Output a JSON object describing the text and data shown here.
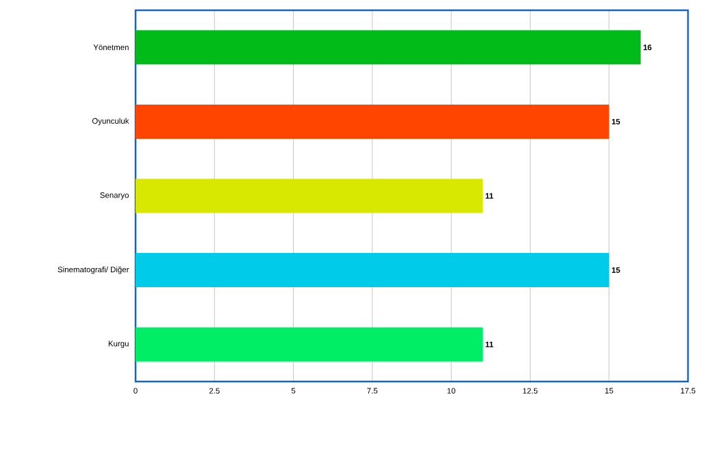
{
  "chart_data": {
    "type": "bar",
    "orientation": "horizontal",
    "categories": [
      "Yönetmen",
      "Oyunculuk",
      "Senaryo",
      "Sinematografi/ Diğer",
      "Kurgu"
    ],
    "values": [
      16,
      15,
      11,
      15,
      11
    ],
    "colors": [
      "#00bb18",
      "#ff4500",
      "#d9e800",
      "#00cbe8",
      "#00ee66"
    ],
    "xlim": [
      0,
      17.5
    ],
    "xticks": [
      0,
      2.5,
      5,
      7.5,
      10,
      12.5,
      15,
      17.5
    ],
    "grid": "x",
    "data_labels": true
  }
}
